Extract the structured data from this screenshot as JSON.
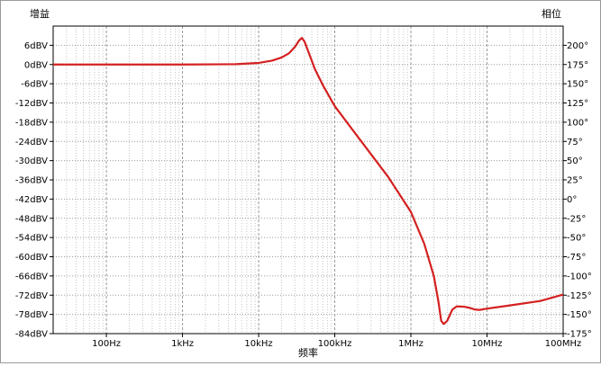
{
  "window": {
    "y_left_title": "增益",
    "y_right_title": "相位",
    "x_title": "频率"
  },
  "colors": {
    "background": "#ffffff",
    "grid_major": "#9a9a9a",
    "grid_minor": "#b8b8b8",
    "axis": "#000000",
    "trace": "#d42020"
  },
  "chart_data": {
    "type": "line",
    "x_scale": "log",
    "xlim": [
      20,
      100000000
    ],
    "x_tick_values": [
      100,
      1000,
      10000,
      100000,
      1000000,
      10000000,
      100000000
    ],
    "x_tick_labels": [
      "100Hz",
      "1kHz",
      "10kHz",
      "100kHz",
      "1MHz",
      "10MHz",
      "100MHz"
    ],
    "ylim_left": [
      -84,
      12
    ],
    "y_left_tick_values": [
      6,
      0,
      -6,
      -12,
      -18,
      -24,
      -30,
      -36,
      -42,
      -48,
      -54,
      -60,
      -66,
      -72,
      -78,
      -84
    ],
    "y_left_tick_labels": [
      "6dBV",
      "0dBV",
      "-6dBV",
      "-12dBV",
      "-18dBV",
      "-24dBV",
      "-30dBV",
      "-36dBV",
      "-42dBV",
      "-48dBV",
      "-54dBV",
      "-60dBV",
      "-66dBV",
      "-72dBV",
      "-78dBV",
      "-84dBV"
    ],
    "ylim_right": [
      -175,
      225
    ],
    "y_right_tick_values": [
      200,
      175,
      150,
      125,
      100,
      75,
      50,
      25,
      0,
      -25,
      -50,
      -75,
      -100,
      -125,
      -150,
      -175
    ],
    "y_right_tick_labels": [
      "200°",
      "175°",
      "150°",
      "125°",
      "100°",
      "75°",
      "50°",
      "25°",
      "0°",
      "-25°",
      "-50°",
      "-75°",
      "-100°",
      "-125°",
      "-150°",
      "-175°"
    ],
    "grid": true,
    "series": [
      {
        "axis": "left",
        "points": [
          [
            20,
            0
          ],
          [
            1000,
            0
          ],
          [
            5000,
            0.1
          ],
          [
            10000,
            0.5
          ],
          [
            15000,
            1.2
          ],
          [
            20000,
            2.2
          ],
          [
            25000,
            3.5
          ],
          [
            30000,
            5.5
          ],
          [
            34000,
            7.5
          ],
          [
            37000,
            8.3
          ],
          [
            40000,
            7.2
          ],
          [
            45000,
            4.0
          ],
          [
            55000,
            -1.5
          ],
          [
            70000,
            -6.5
          ],
          [
            100000,
            -13.0
          ],
          [
            200000,
            -22.5
          ],
          [
            500000,
            -35.0
          ],
          [
            1000000,
            -46.0
          ],
          [
            1500000,
            -56.0
          ],
          [
            2000000,
            -66.0
          ],
          [
            2300000,
            -74.0
          ],
          [
            2500000,
            -80.0
          ],
          [
            2700000,
            -81.0
          ],
          [
            3000000,
            -80.0
          ],
          [
            3500000,
            -76.5
          ],
          [
            4000000,
            -75.5
          ],
          [
            5000000,
            -75.6
          ],
          [
            6000000,
            -76.0
          ],
          [
            7000000,
            -76.5
          ],
          [
            8000000,
            -76.6
          ],
          [
            10000000,
            -76.2
          ],
          [
            20000000,
            -75.2
          ],
          [
            50000000,
            -73.8
          ],
          [
            100000000,
            -71.8
          ]
        ]
      }
    ]
  }
}
